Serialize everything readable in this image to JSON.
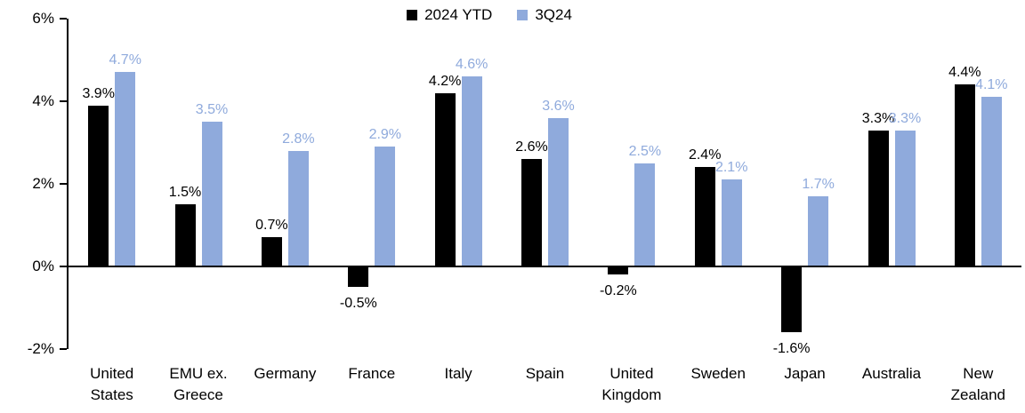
{
  "chart_data": {
    "type": "bar",
    "title": "",
    "categories": [
      "United\nStates",
      "EMU ex.\nGreece",
      "Germany",
      "France",
      "Italy",
      "Spain",
      "United\nKingdom",
      "Sweden",
      "Japan",
      "Australia",
      "New\nZealand"
    ],
    "series": [
      {
        "name": "2024 YTD",
        "color": "#000000",
        "values": [
          3.9,
          1.5,
          0.7,
          -0.5,
          4.2,
          2.6,
          -0.2,
          2.4,
          -1.6,
          3.3,
          4.4
        ]
      },
      {
        "name": "3Q24",
        "color": "#8FAADC",
        "values": [
          4.7,
          3.5,
          2.8,
          2.9,
          4.6,
          3.6,
          2.5,
          2.1,
          1.7,
          3.3,
          4.1
        ]
      }
    ],
    "ylim": [
      -2,
      6
    ],
    "ytick_values": [
      6,
      4,
      2,
      0,
      -2
    ],
    "ytick_labels": [
      "6%",
      "4%",
      "2%",
      "0%",
      "-2%"
    ],
    "value_suffix": "%",
    "value_decimals": 1,
    "legend_position": "top-center",
    "grid": false,
    "data_labels": true
  }
}
